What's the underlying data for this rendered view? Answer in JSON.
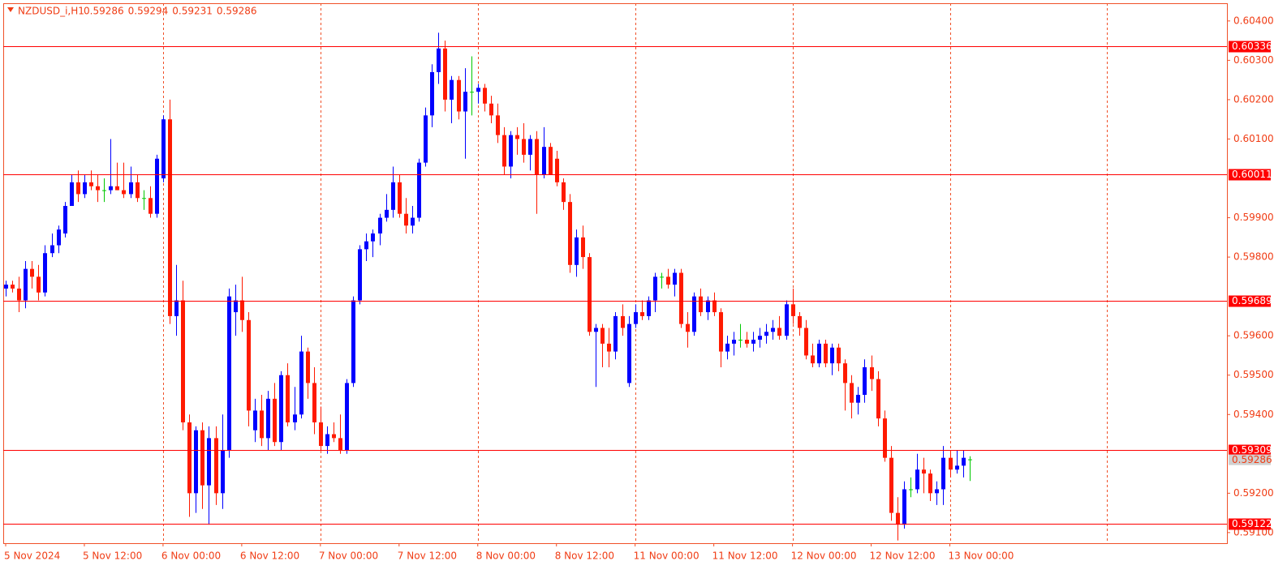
{
  "chart_data": {
    "type": "candlestick",
    "symbol": "NZDUSD_i,H1",
    "ohlc_labels": [
      "0.59286",
      "0.59294",
      "0.59231",
      "0.59286"
    ],
    "up_color": "#0000ff",
    "down_color": "#ff1a00",
    "doji_color": "#00c800",
    "ylim": [
      0.59073,
      0.60445
    ],
    "yticks": [
      {
        "value": 0.604,
        "label": "0.60400"
      },
      {
        "value": 0.603,
        "label": "0.60300"
      },
      {
        "value": 0.602,
        "label": "0.60200"
      },
      {
        "value": 0.601,
        "label": "0.60100"
      },
      {
        "value": 0.599,
        "label": "0.59900"
      },
      {
        "value": 0.598,
        "label": "0.59800"
      },
      {
        "value": 0.596,
        "label": "0.59600"
      },
      {
        "value": 0.595,
        "label": "0.59500"
      },
      {
        "value": 0.594,
        "label": "0.59400"
      },
      {
        "value": 0.592,
        "label": "0.59200"
      },
      {
        "value": 0.591,
        "label": "0.59100"
      }
    ],
    "levels": [
      {
        "value": 0.60336,
        "label": "0.60336"
      },
      {
        "value": 0.60011,
        "label": "0.60011"
      },
      {
        "value": 0.59689,
        "label": "0.59689"
      },
      {
        "value": 0.59309,
        "label": "0.59309"
      },
      {
        "value": 0.59122,
        "label": "0.59122"
      }
    ],
    "level_color": "#ff0000",
    "current_price": {
      "value": 0.59286,
      "label": "0.59286"
    },
    "time_labels": [
      "5 Nov 2024",
      "5 Nov 12:00",
      "6 Nov 00:00",
      "6 Nov 12:00",
      "7 Nov 00:00",
      "7 Nov 12:00",
      "8 Nov 00:00",
      "8 Nov 12:00",
      "11 Nov 00:00",
      "11 Nov 12:00",
      "12 Nov 00:00",
      "12 Nov 12:00",
      "13 Nov 00:00"
    ],
    "candles": [
      [
        0.5972,
        0.5974,
        0.597,
        0.5973
      ],
      [
        0.5973,
        0.5974,
        0.5971,
        0.5972
      ],
      [
        0.5972,
        0.5975,
        0.5966,
        0.5969
      ],
      [
        0.5969,
        0.5979,
        0.5967,
        0.5977
      ],
      [
        0.5977,
        0.5979,
        0.5972,
        0.5975
      ],
      [
        0.5975,
        0.5978,
        0.5969,
        0.5971
      ],
      [
        0.5971,
        0.5983,
        0.597,
        0.5981
      ],
      [
        0.5981,
        0.5986,
        0.598,
        0.5983
      ],
      [
        0.5983,
        0.5988,
        0.5981,
        0.5987
      ],
      [
        0.5986,
        0.5994,
        0.5985,
        0.5993
      ],
      [
        0.5993,
        0.6001,
        0.5993,
        0.5999
      ],
      [
        0.5999,
        0.6002,
        0.5994,
        0.5996
      ],
      [
        0.5996,
        0.6001,
        0.5995,
        0.5999
      ],
      [
        0.5999,
        0.6002,
        0.5997,
        0.5998
      ],
      [
        0.5998,
        0.6001,
        0.5994,
        0.5997
      ],
      [
        0.5997,
        0.6,
        0.5994,
        0.5997
      ],
      [
        0.5997,
        0.601,
        0.5996,
        0.5998
      ],
      [
        0.5998,
        0.6004,
        0.5997,
        0.5997
      ],
      [
        0.5997,
        0.6004,
        0.5995,
        0.5996
      ],
      [
        0.5996,
        0.6003,
        0.5995,
        0.5999
      ],
      [
        0.5999,
        0.6001,
        0.5994,
        0.5995
      ],
      [
        0.5995,
        0.5997,
        0.5992,
        0.5995
      ],
      [
        0.5995,
        0.5998,
        0.599,
        0.5991
      ],
      [
        0.5991,
        0.6006,
        0.599,
        0.6005
      ],
      [
        0.6,
        0.6016,
        0.5999,
        0.6015
      ],
      [
        0.6015,
        0.602,
        0.5963,
        0.5965
      ],
      [
        0.5965,
        0.5978,
        0.596,
        0.5969
      ],
      [
        0.5969,
        0.5974,
        0.5936,
        0.5938
      ],
      [
        0.5938,
        0.594,
        0.5914,
        0.592
      ],
      [
        0.592,
        0.5937,
        0.5915,
        0.5936
      ],
      [
        0.5936,
        0.5938,
        0.5916,
        0.5922
      ],
      [
        0.5922,
        0.5937,
        0.5912,
        0.5934
      ],
      [
        0.5934,
        0.5937,
        0.5917,
        0.592
      ],
      [
        0.592,
        0.594,
        0.5916,
        0.5931
      ],
      [
        0.5931,
        0.5972,
        0.5929,
        0.597
      ],
      [
        0.5966,
        0.5973,
        0.596,
        0.5969
      ],
      [
        0.5969,
        0.5975,
        0.5961,
        0.5964
      ],
      [
        0.5964,
        0.5966,
        0.5937,
        0.5941
      ],
      [
        0.5936,
        0.5944,
        0.5933,
        0.5941
      ],
      [
        0.5941,
        0.5945,
        0.5932,
        0.5934
      ],
      [
        0.5934,
        0.5946,
        0.5931,
        0.5944
      ],
      [
        0.5944,
        0.5948,
        0.5932,
        0.5933
      ],
      [
        0.5933,
        0.5951,
        0.5931,
        0.595
      ],
      [
        0.595,
        0.5953,
        0.5937,
        0.5938
      ],
      [
        0.5938,
        0.5947,
        0.5936,
        0.594
      ],
      [
        0.594,
        0.596,
        0.5939,
        0.5956
      ],
      [
        0.5956,
        0.5957,
        0.5944,
        0.5948
      ],
      [
        0.5948,
        0.5952,
        0.5935,
        0.5938
      ],
      [
        0.5938,
        0.5942,
        0.5931,
        0.5932
      ],
      [
        0.5932,
        0.5937,
        0.593,
        0.5935
      ],
      [
        0.5935,
        0.5938,
        0.5933,
        0.5934
      ],
      [
        0.5934,
        0.594,
        0.593,
        0.5931
      ],
      [
        0.5931,
        0.5949,
        0.593,
        0.5948
      ],
      [
        0.5948,
        0.597,
        0.5947,
        0.5969
      ],
      [
        0.5969,
        0.5983,
        0.5968,
        0.5982
      ],
      [
        0.5982,
        0.5986,
        0.5979,
        0.5984
      ],
      [
        0.5984,
        0.5987,
        0.598,
        0.5986
      ],
      [
        0.5986,
        0.5991,
        0.5983,
        0.599
      ],
      [
        0.599,
        0.5996,
        0.5989,
        0.5992
      ],
      [
        0.5992,
        0.6003,
        0.599,
        0.5999
      ],
      [
        0.5999,
        0.6001,
        0.599,
        0.5991
      ],
      [
        0.5991,
        0.5995,
        0.5986,
        0.5988
      ],
      [
        0.5988,
        0.5993,
        0.5986,
        0.599
      ],
      [
        0.599,
        0.6005,
        0.5989,
        0.6004
      ],
      [
        0.6004,
        0.6018,
        0.6003,
        0.6016
      ],
      [
        0.6016,
        0.6029,
        0.6013,
        0.6027
      ],
      [
        0.6027,
        0.6037,
        0.6024,
        0.6033
      ],
      [
        0.6033,
        0.6035,
        0.6017,
        0.602
      ],
      [
        0.602,
        0.6026,
        0.6014,
        0.6025
      ],
      [
        0.6025,
        0.6026,
        0.6015,
        0.6017
      ],
      [
        0.6017,
        0.6028,
        0.6005,
        0.6022
      ],
      [
        0.6022,
        0.6031,
        0.6016,
        0.6022
      ],
      [
        0.6022,
        0.6024,
        0.6019,
        0.6023
      ],
      [
        0.6023,
        0.6024,
        0.6017,
        0.6019
      ],
      [
        0.6019,
        0.6021,
        0.6014,
        0.6016
      ],
      [
        0.6016,
        0.6019,
        0.6009,
        0.6011
      ],
      [
        0.6011,
        0.6013,
        0.6001,
        0.6003
      ],
      [
        0.6003,
        0.6012,
        0.6,
        0.6011
      ],
      [
        0.6011,
        0.6013,
        0.6006,
        0.601
      ],
      [
        0.601,
        0.6014,
        0.6004,
        0.6006
      ],
      [
        0.6006,
        0.6011,
        0.6002,
        0.601
      ],
      [
        0.601,
        0.6012,
        0.5991,
        0.6001
      ],
      [
        0.6001,
        0.6013,
        0.6,
        0.6008
      ],
      [
        0.6008,
        0.6009,
        0.6001,
        0.6001
      ],
      [
        0.6005,
        0.6007,
        0.5998,
        0.5999
      ],
      [
        0.5999,
        0.6,
        0.5992,
        0.5994
      ],
      [
        0.5994,
        0.5996,
        0.5976,
        0.5978
      ],
      [
        0.5978,
        0.5987,
        0.5975,
        0.5985
      ],
      [
        0.5985,
        0.5988,
        0.5977,
        0.598
      ],
      [
        0.598,
        0.5981,
        0.596,
        0.5961
      ],
      [
        0.5961,
        0.5963,
        0.5947,
        0.5962
      ],
      [
        0.5962,
        0.5963,
        0.5952,
        0.5958
      ],
      [
        0.5958,
        0.5962,
        0.5952,
        0.5956
      ],
      [
        0.5956,
        0.5966,
        0.5954,
        0.5965
      ],
      [
        0.5965,
        0.5968,
        0.596,
        0.5962
      ],
      [
        0.5948,
        0.5965,
        0.5947,
        0.5963
      ],
      [
        0.5963,
        0.5968,
        0.5962,
        0.5966
      ],
      [
        0.5966,
        0.5969,
        0.5964,
        0.5965
      ],
      [
        0.5965,
        0.597,
        0.5964,
        0.5969
      ],
      [
        0.5969,
        0.5976,
        0.5966,
        0.5975
      ],
      [
        0.5975,
        0.5976,
        0.5972,
        0.5975
      ],
      [
        0.5975,
        0.5977,
        0.5972,
        0.5973
      ],
      [
        0.5973,
        0.5977,
        0.597,
        0.5976
      ],
      [
        0.5976,
        0.5977,
        0.5962,
        0.5963
      ],
      [
        0.5963,
        0.5966,
        0.5957,
        0.5961
      ],
      [
        0.5961,
        0.5971,
        0.596,
        0.597
      ],
      [
        0.597,
        0.5972,
        0.5965,
        0.5966
      ],
      [
        0.5966,
        0.597,
        0.5964,
        0.5969
      ],
      [
        0.5969,
        0.5971,
        0.5965,
        0.5966
      ],
      [
        0.5966,
        0.5967,
        0.5952,
        0.5956
      ],
      [
        0.5956,
        0.596,
        0.5954,
        0.5958
      ],
      [
        0.5958,
        0.5961,
        0.5955,
        0.5959
      ],
      [
        0.5959,
        0.5963,
        0.5957,
        0.5959
      ],
      [
        0.5959,
        0.5961,
        0.5957,
        0.5958
      ],
      [
        0.5958,
        0.5961,
        0.5956,
        0.5959
      ],
      [
        0.5959,
        0.5962,
        0.5957,
        0.596
      ],
      [
        0.596,
        0.5963,
        0.5958,
        0.5961
      ],
      [
        0.5961,
        0.5964,
        0.5959,
        0.5962
      ],
      [
        0.5962,
        0.5965,
        0.5959,
        0.596
      ],
      [
        0.596,
        0.5969,
        0.5959,
        0.5968
      ],
      [
        0.5968,
        0.5972,
        0.5963,
        0.5965
      ],
      [
        0.5965,
        0.5966,
        0.596,
        0.5962
      ],
      [
        0.5962,
        0.5964,
        0.5954,
        0.5955
      ],
      [
        0.5955,
        0.5958,
        0.5952,
        0.5953
      ],
      [
        0.5953,
        0.5959,
        0.5952,
        0.5958
      ],
      [
        0.5958,
        0.5959,
        0.5952,
        0.5953
      ],
      [
        0.5953,
        0.5958,
        0.595,
        0.5957
      ],
      [
        0.5957,
        0.5958,
        0.5951,
        0.5953
      ],
      [
        0.5953,
        0.5954,
        0.5941,
        0.5948
      ],
      [
        0.5948,
        0.595,
        0.5939,
        0.5943
      ],
      [
        0.5943,
        0.5947,
        0.594,
        0.5945
      ],
      [
        0.5945,
        0.5954,
        0.5943,
        0.5952
      ],
      [
        0.5952,
        0.5955,
        0.5946,
        0.5949
      ],
      [
        0.5949,
        0.5951,
        0.5937,
        0.5939
      ],
      [
        0.5939,
        0.5941,
        0.5928,
        0.5929
      ],
      [
        0.5929,
        0.5932,
        0.5913,
        0.5915
      ],
      [
        0.5915,
        0.5919,
        0.5908,
        0.5912
      ],
      [
        0.5912,
        0.5923,
        0.5911,
        0.5921
      ],
      [
        0.5921,
        0.5924,
        0.5919,
        0.5921
      ],
      [
        0.5921,
        0.593,
        0.592,
        0.5926
      ],
      [
        0.5926,
        0.5929,
        0.592,
        0.5925
      ],
      [
        0.5925,
        0.5926,
        0.5918,
        0.592
      ],
      [
        0.592,
        0.5923,
        0.5917,
        0.5921
      ],
      [
        0.5921,
        0.5932,
        0.5917,
        0.5929
      ],
      [
        0.5929,
        0.5931,
        0.5924,
        0.5926
      ],
      [
        0.5926,
        0.5931,
        0.5925,
        0.5927
      ],
      [
        0.5927,
        0.5931,
        0.5924,
        0.5929
      ],
      [
        0.59286,
        0.59294,
        0.59231,
        0.59286
      ]
    ]
  }
}
